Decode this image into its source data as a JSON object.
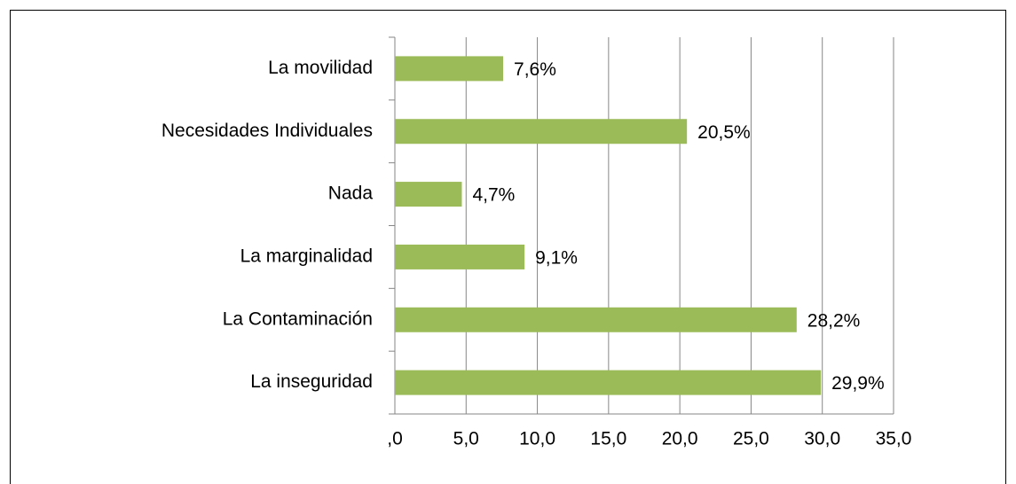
{
  "chart_data": {
    "type": "bar",
    "orientation": "horizontal",
    "categories": [
      "La movilidad",
      "Necesidades Individuales",
      "Nada",
      "La marginalidad",
      "La Contaminación",
      "La inseguridad"
    ],
    "values": [
      7.6,
      20.5,
      4.7,
      9.1,
      28.2,
      29.9
    ],
    "value_labels": [
      "7,6%",
      "20,5%",
      "4,7%",
      "9,1%",
      "28,2%",
      "29,9%"
    ],
    "color": "#9bbb59",
    "xlim": [
      0,
      35
    ],
    "xticks": [
      {
        "value": 0,
        "label": ",0"
      },
      {
        "value": 5,
        "label": "5,0"
      },
      {
        "value": 10,
        "label": "10,0"
      },
      {
        "value": 15,
        "label": "15,0"
      },
      {
        "value": 20,
        "label": "20,0"
      },
      {
        "value": 25,
        "label": "25,0"
      },
      {
        "value": 30,
        "label": "30,0"
      },
      {
        "value": 35,
        "label": "35,0"
      }
    ],
    "grid": true
  }
}
